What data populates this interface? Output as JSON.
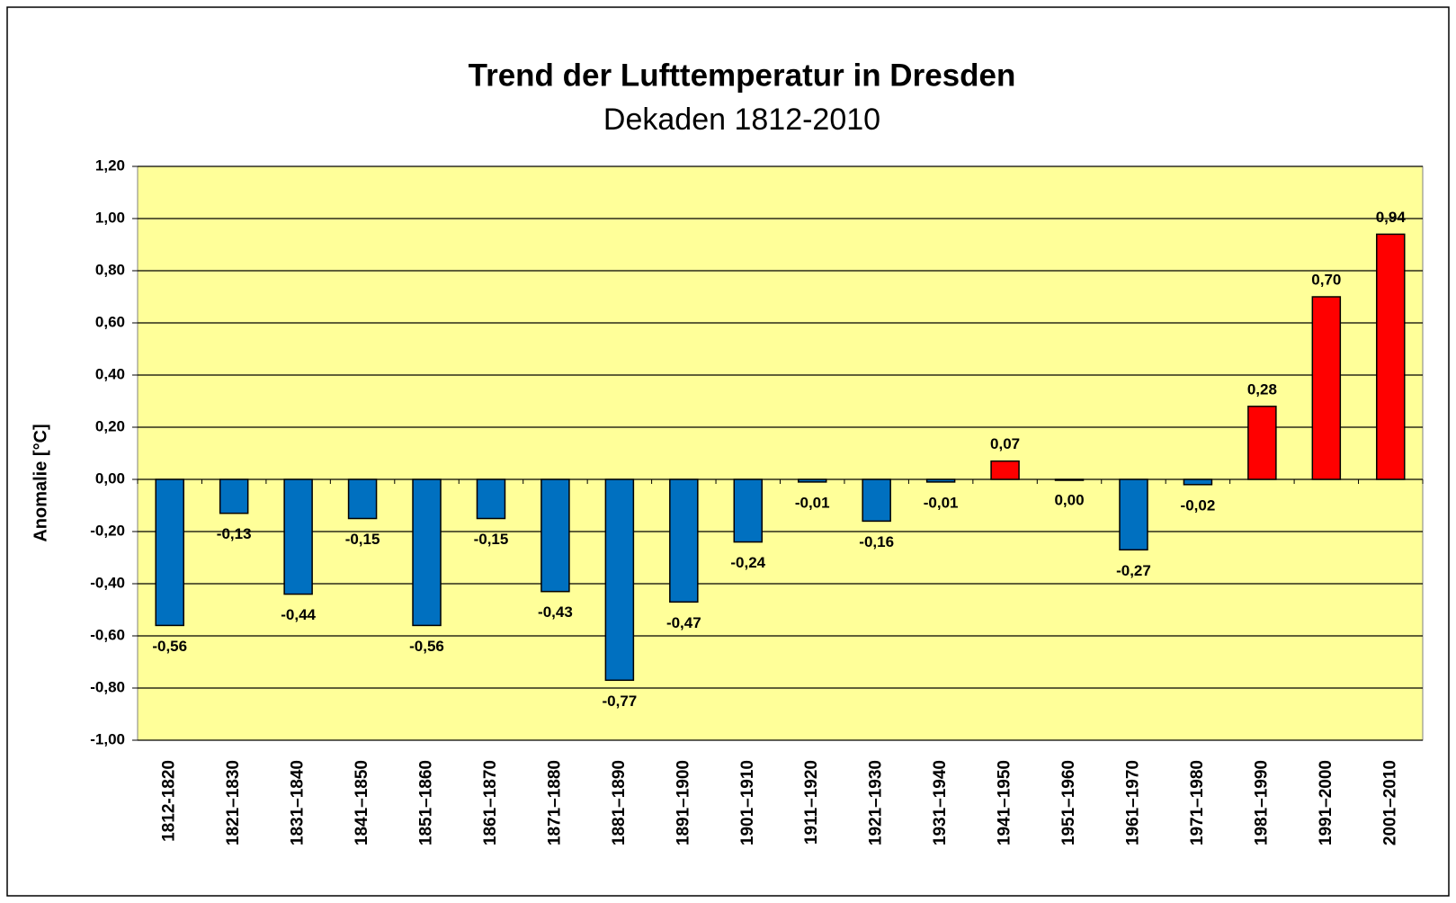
{
  "chart_data": {
    "type": "bar",
    "title": "Trend der Lufttemperatur in Dresden",
    "subtitle": "Dekaden 1812-2010",
    "y_label": "Anomalie [°C]",
    "categories": [
      "1812-1820",
      "1821–1830",
      "1831–1840",
      "1841–1850",
      "1851–1860",
      "1861–1870",
      "1871–1880",
      "1881–1890",
      "1891–1900",
      "1901–1910",
      "1911–1920",
      "1921–1930",
      "1931–1940",
      "1941–1950",
      "1951–1960",
      "1961–1970",
      "1971–1980",
      "1981–1990",
      "1991–2000",
      "2001–2010"
    ],
    "values": [
      -0.56,
      -0.13,
      -0.44,
      -0.15,
      -0.56,
      -0.15,
      -0.43,
      -0.77,
      -0.47,
      -0.24,
      -0.01,
      -0.16,
      -0.01,
      0.07,
      0.0,
      -0.27,
      -0.02,
      0.28,
      0.7,
      0.94
    ],
    "value_labels": [
      "-0,56",
      "-0,13",
      "-0,44",
      "-0,15",
      "-0,56",
      "-0,15",
      "-0,43",
      "-0,77",
      "-0,47",
      "-0,24",
      "-0,01",
      "-0,16",
      "-0,01",
      "0,07",
      "0,00",
      "-0,27",
      "-0,02",
      "0,28",
      "0,70",
      "0,94"
    ],
    "colors": [
      "#0070c0",
      "#0070c0",
      "#0070c0",
      "#0070c0",
      "#0070c0",
      "#0070c0",
      "#0070c0",
      "#0070c0",
      "#0070c0",
      "#0070c0",
      "#0070c0",
      "#0070c0",
      "#0070c0",
      "#ff0000",
      "#0070c0",
      "#0070c0",
      "#0070c0",
      "#ff0000",
      "#ff0000",
      "#ff0000"
    ],
    "ylim": [
      -1.0,
      1.2
    ],
    "yticks": [
      {
        "value": -1.0,
        "label": "-1,00"
      },
      {
        "value": -0.8,
        "label": "-0,80"
      },
      {
        "value": -0.6,
        "label": "-0,60"
      },
      {
        "value": -0.4,
        "label": "-0,40"
      },
      {
        "value": -0.2,
        "label": "-0,20"
      },
      {
        "value": 0.0,
        "label": "0,00"
      },
      {
        "value": 0.2,
        "label": "0,20"
      },
      {
        "value": 0.4,
        "label": "0,40"
      },
      {
        "value": 0.6,
        "label": "0,60"
      },
      {
        "value": 0.8,
        "label": "0,80"
      },
      {
        "value": 1.0,
        "label": "1,00"
      },
      {
        "value": 1.2,
        "label": "1,20"
      }
    ],
    "grid": true,
    "plot_background": "#ffff99"
  }
}
